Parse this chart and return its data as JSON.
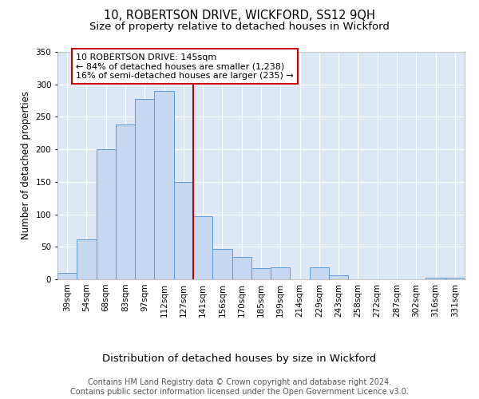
{
  "title": "10, ROBERTSON DRIVE, WICKFORD, SS12 9QH",
  "subtitle": "Size of property relative to detached houses in Wickford",
  "xlabel": "Distribution of detached houses by size in Wickford",
  "ylabel": "Number of detached properties",
  "categories": [
    "39sqm",
    "54sqm",
    "68sqm",
    "83sqm",
    "97sqm",
    "112sqm",
    "127sqm",
    "141sqm",
    "156sqm",
    "170sqm",
    "185sqm",
    "199sqm",
    "214sqm",
    "229sqm",
    "243sqm",
    "258sqm",
    "272sqm",
    "287sqm",
    "302sqm",
    "316sqm",
    "331sqm"
  ],
  "values": [
    10,
    62,
    200,
    238,
    278,
    290,
    150,
    97,
    47,
    35,
    17,
    18,
    0,
    18,
    6,
    0,
    0,
    0,
    0,
    3,
    2
  ],
  "bar_color": "#c5d8f0",
  "bar_edge_color": "#5b9bd5",
  "annotation_title": "10 ROBERTSON DRIVE: 145sqm",
  "annotation_line1": "← 84% of detached houses are smaller (1,238)",
  "annotation_line2": "16% of semi-detached houses are larger (235) →",
  "annotation_box_facecolor": "#ffffff",
  "annotation_box_edgecolor": "#cc0000",
  "vline_x": 7,
  "vline_color": "#cc0000",
  "ylim": [
    0,
    350
  ],
  "yticks": [
    0,
    50,
    100,
    150,
    200,
    250,
    300,
    350
  ],
  "plot_bg_color": "#dce8f5",
  "fig_bg_color": "#ffffff",
  "footer_line1": "Contains HM Land Registry data © Crown copyright and database right 2024.",
  "footer_line2": "Contains public sector information licensed under the Open Government Licence v3.0.",
  "title_fontsize": 10.5,
  "subtitle_fontsize": 9.5,
  "xlabel_fontsize": 9.5,
  "ylabel_fontsize": 8.5,
  "tick_fontsize": 7.5,
  "annotation_fontsize": 8,
  "footer_fontsize": 7
}
